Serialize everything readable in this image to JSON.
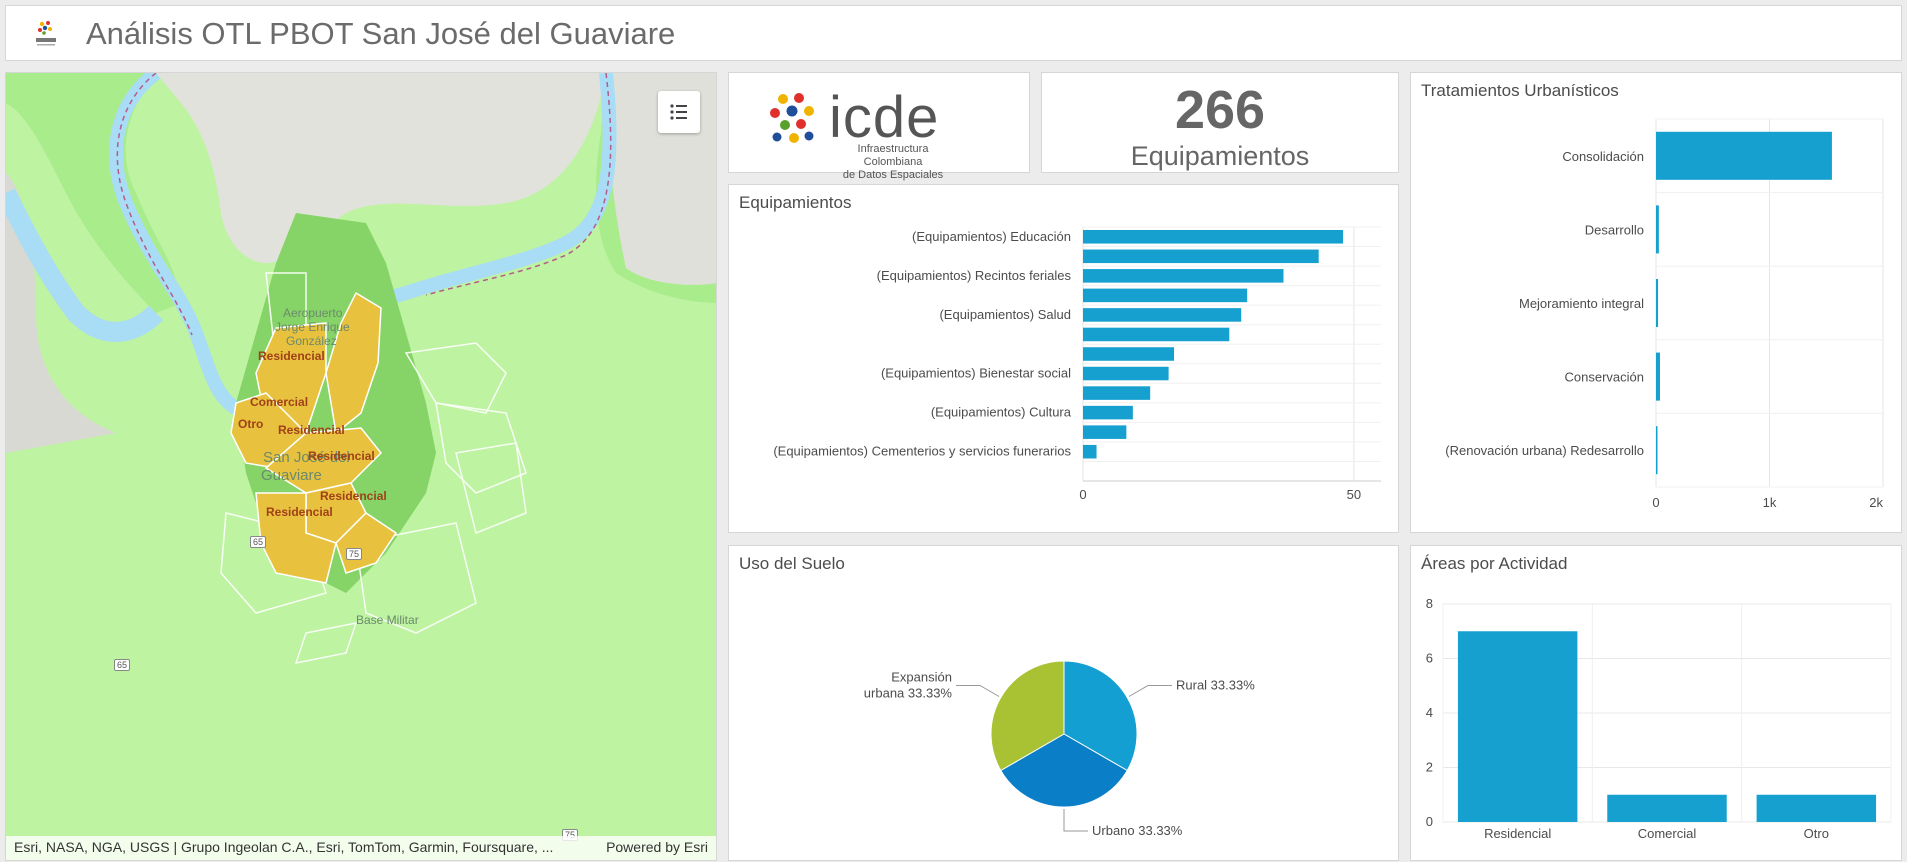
{
  "header": {
    "title": "Análisis OTL PBOT San José del Guaviare"
  },
  "map": {
    "attribution": "Esri, NASA, NGA, USGS | Grupo Ingeolan C.A., Esri, TomTom, Garmin, Foursquare, ...",
    "powered_by": "Powered by Esri",
    "zone_labels": [
      "Residencial",
      "Comercial",
      "Otro",
      "Residencial",
      "Residencial",
      "Residencial",
      "Residencial"
    ],
    "place_labels": [
      "Aeropuerto",
      "Jorge Enrique",
      "González",
      "San José del",
      "Guaviare",
      "Base Militar"
    ],
    "road_shields": [
      "65",
      "75",
      "65",
      "75"
    ],
    "legend_icon": "legend-list-icon"
  },
  "logo_card": {
    "brand": "icde",
    "subtitle_line1": "Infraestructura Colombiana",
    "subtitle_line2": "de Datos Espaciales"
  },
  "kpi": {
    "value": "266",
    "label": "Equipamientos"
  },
  "equipamientos": {
    "title": "Equipamientos",
    "chart_data": {
      "type": "bar",
      "orientation": "horizontal",
      "title": "Equipamientos",
      "categories": [
        "(Equipamientos) Educación",
        "",
        "(Equipamientos) Recintos feriales",
        "",
        "(Equipamientos) Salud",
        "",
        "",
        "(Equipamientos) Bienestar social",
        "",
        "(Equipamientos) Cultura",
        "",
        "(Equipamientos) Cementerios y servicios funerarios",
        ""
      ],
      "values": [
        48,
        43.5,
        37,
        30.3,
        29.2,
        27,
        16.8,
        15.8,
        12.4,
        9.2,
        8,
        2.5,
        0
      ],
      "xlim": [
        0,
        55
      ],
      "xticks": [
        0,
        50
      ],
      "xtick_labels": [
        "0",
        "50"
      ],
      "grid": true,
      "color": "#15a0d0"
    }
  },
  "uso_suelo": {
    "title": "Uso del Suelo",
    "chart_data": {
      "type": "pie",
      "title": "Uso del Suelo",
      "slices": [
        {
          "label": "Rural 33.33%",
          "value": 33.33,
          "color": "#149fd3"
        },
        {
          "label": "Urbano 33.33%",
          "value": 33.33,
          "color": "#0a7fc8"
        },
        {
          "label": "Expansión urbana 33.33%",
          "label_lines": [
            "Expansión",
            "urbana 33.33%"
          ],
          "value": 33.33,
          "color": "#a8c234"
        }
      ]
    }
  },
  "tratamientos": {
    "title": "Tratamientos Urbanísticos",
    "chart_data": {
      "type": "bar",
      "orientation": "horizontal",
      "title": "Tratamientos Urbanísticos",
      "categories": [
        "Consolidación",
        "Desarrollo",
        "Mejoramiento integral",
        "Conservación",
        "(Renovación urbana) Redesarrollo"
      ],
      "values": [
        1550,
        25,
        18,
        35,
        8
      ],
      "xlim": [
        0,
        2000
      ],
      "xticks": [
        0,
        1000,
        2000
      ],
      "xtick_labels": [
        "0",
        "1k",
        "2k"
      ],
      "grid": true,
      "color": "#15a0d0"
    }
  },
  "areas": {
    "title": "Áreas por Actividad",
    "chart_data": {
      "type": "bar",
      "title": "Áreas por Actividad",
      "categories": [
        "Residencial",
        "Comercial",
        "Otro"
      ],
      "values": [
        7,
        1,
        1
      ],
      "ylim": [
        0,
        8
      ],
      "yticks": [
        0,
        2,
        4,
        6,
        8
      ],
      "grid": true,
      "color": "#15a0d0"
    }
  }
}
